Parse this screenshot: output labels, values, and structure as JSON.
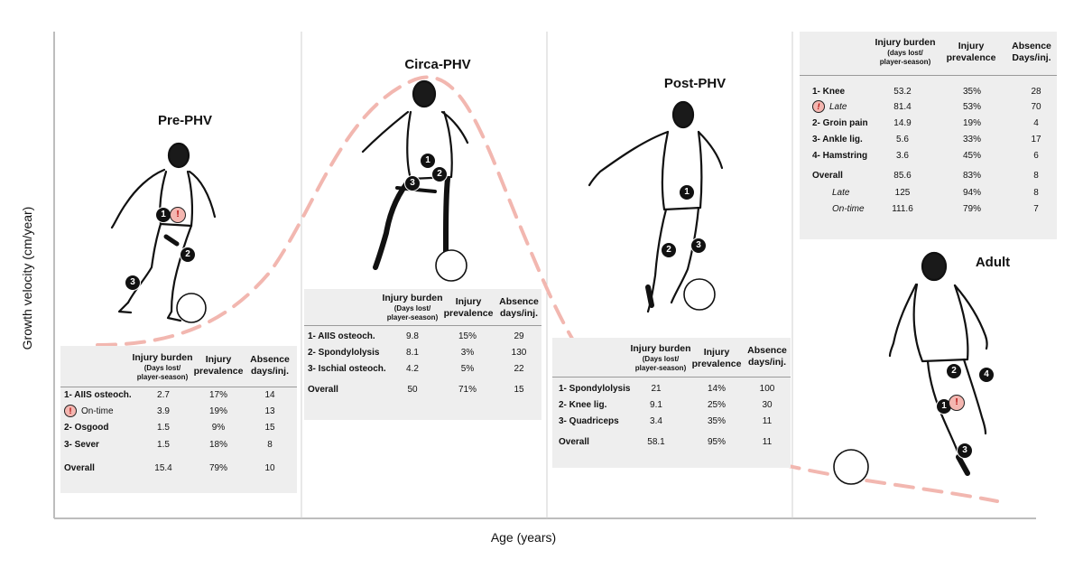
{
  "axes": {
    "y_label": "Growth velocity (cm/year)",
    "x_label": "Age (years)"
  },
  "colors": {
    "curve": "#f2b7b0",
    "panel": "#eeeeee",
    "divider": "#c8c8c8",
    "badge": "#111111",
    "alert": "#f4b6b0"
  },
  "icons": {
    "player": "soccer-player-sketch-icon",
    "ball": "soccer-ball-icon",
    "alert": "exclamation-alert-icon"
  },
  "headers": {
    "burden_title": "Injury burden",
    "burden_sub_days_lost": "(Days lost/",
    "burden_sub_days_lost_lc": "(days lost/",
    "burden_sub_player_season": "player-season)",
    "prevalence_l1": "Injury",
    "prevalence_l2": "prevalence",
    "absence_l1": "Absence",
    "absence_l2_lc": "days/inj.",
    "absence_l2_uc": "Days/inj."
  },
  "pre_phv": {
    "title": "Pre-PHV",
    "badges": [
      "1",
      "!",
      "2",
      "3"
    ],
    "rows": [
      {
        "label": "1- AIIS osteoch.",
        "burden": "2.7",
        "prevalence": "17%",
        "absence": "14"
      },
      {
        "label": "On-time",
        "alert": true,
        "burden": "3.9",
        "prevalence": "19%",
        "absence": "13"
      },
      {
        "label": "2- Osgood",
        "burden": "1.5",
        "prevalence": "9%",
        "absence": "15"
      },
      {
        "label": "3- Sever",
        "burden": "1.5",
        "prevalence": "18%",
        "absence": "8"
      },
      {
        "label": "Overall",
        "burden": "15.4",
        "prevalence": "79%",
        "absence": "10"
      }
    ]
  },
  "circa_phv": {
    "title": "Circa-PHV",
    "badges": [
      "1",
      "2",
      "3"
    ],
    "rows": [
      {
        "label": "1- AIIS osteoch.",
        "burden": "9.8",
        "prevalence": "15%",
        "absence": "29"
      },
      {
        "label": "2- Spondylolysis",
        "burden": "8.1",
        "prevalence": "3%",
        "absence": "130"
      },
      {
        "label": "3- Ischial osteoch.",
        "burden": "4.2",
        "prevalence": "5%",
        "absence": "22"
      },
      {
        "label": "Overall",
        "burden": "50",
        "prevalence": "71%",
        "absence": "15"
      }
    ]
  },
  "post_phv": {
    "title": "Post-PHV",
    "badges": [
      "1",
      "2",
      "3"
    ],
    "rows": [
      {
        "label": "1- Spondylolysis",
        "burden": "21",
        "prevalence": "14%",
        "absence": "100"
      },
      {
        "label": "2- Knee lig.",
        "burden": "9.1",
        "prevalence": "25%",
        "absence": "30"
      },
      {
        "label": "3- Quadriceps",
        "burden": "3.4",
        "prevalence": "35%",
        "absence": "11"
      },
      {
        "label": "Overall",
        "burden": "58.1",
        "prevalence": "95%",
        "absence": "11"
      }
    ]
  },
  "adult": {
    "title": "Adult",
    "badges": [
      "2",
      "4",
      "1",
      "!",
      "3"
    ],
    "rows": [
      {
        "label": "1- Knee",
        "burden": "53.2",
        "prevalence": "35%",
        "absence": "28"
      },
      {
        "label": "Late",
        "alert": true,
        "burden": "81.4",
        "prevalence": "53%",
        "absence": "70"
      },
      {
        "label": "2- Groin pain",
        "burden": "14.9",
        "prevalence": "19%",
        "absence": "4"
      },
      {
        "label": "3- Ankle lig.",
        "burden": "5.6",
        "prevalence": "33%",
        "absence": "17"
      },
      {
        "label": "4- Hamstring",
        "burden": "3.6",
        "prevalence": "45%",
        "absence": "6"
      },
      {
        "label": "Overall",
        "burden": "85.6",
        "prevalence": "83%",
        "absence": "8"
      },
      {
        "label": "Late",
        "burden": "125",
        "prevalence": "94%",
        "absence": "8"
      },
      {
        "label": "On-time",
        "burden": "111.6",
        "prevalence": "79%",
        "absence": "7"
      }
    ]
  }
}
